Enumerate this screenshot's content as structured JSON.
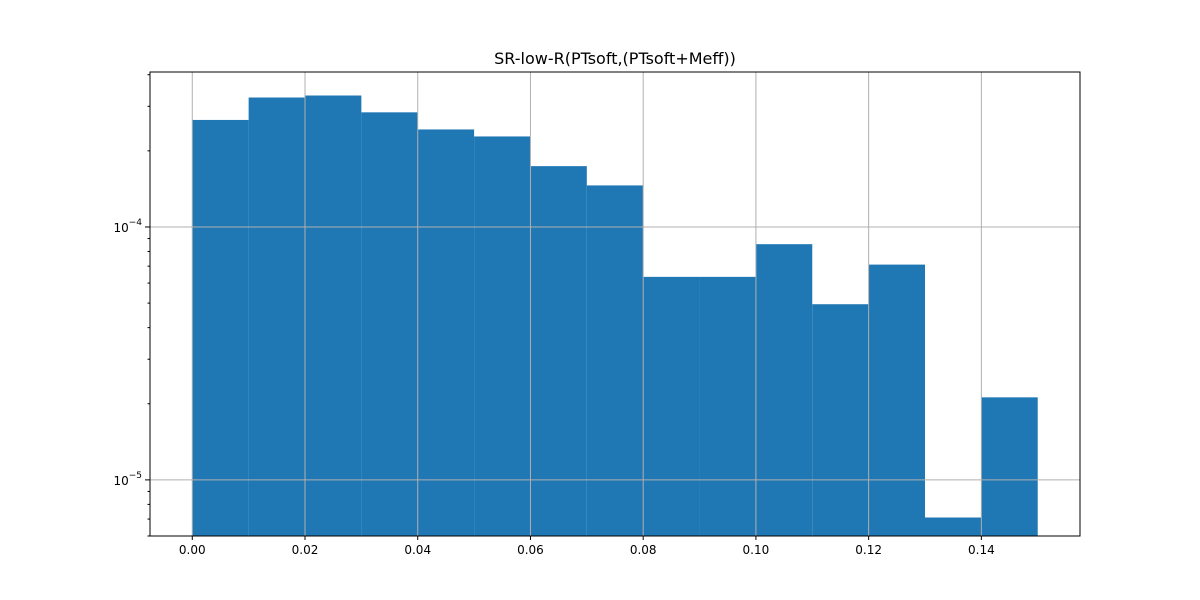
{
  "chart_data": {
    "type": "bar",
    "title": "SR-low-R(PTsoft,(PTsoft+Meff))",
    "xlabel": "",
    "ylabel": "",
    "y_scale": "log",
    "grid": true,
    "bar_color": "#1f77b4",
    "grid_color": "#b0b0b0",
    "bin_edges": [
      0.0,
      0.01,
      0.02,
      0.03,
      0.04,
      0.05,
      0.06,
      0.07,
      0.08,
      0.09,
      0.1,
      0.11,
      0.12,
      0.13,
      0.14,
      0.15
    ],
    "values": [
      0.000265,
      0.000325,
      0.000331,
      0.000284,
      0.000243,
      0.000228,
      0.000174,
      0.000146,
      6.35e-05,
      6.35e-05,
      8.55e-05,
      4.95e-05,
      7.1e-05,
      7.1e-06,
      2.12e-05
    ],
    "xlim": [
      -0.0075,
      0.1575
    ],
    "ylim": [
      6e-06,
      0.00041
    ],
    "x_ticks": [
      {
        "value": 0.0,
        "label": "0.00"
      },
      {
        "value": 0.02,
        "label": "0.02"
      },
      {
        "value": 0.04,
        "label": "0.04"
      },
      {
        "value": 0.06,
        "label": "0.06"
      },
      {
        "value": 0.08,
        "label": "0.08"
      },
      {
        "value": 0.1,
        "label": "0.10"
      },
      {
        "value": 0.12,
        "label": "0.12"
      },
      {
        "value": 0.14,
        "label": "0.14"
      }
    ],
    "y_major_ticks": [
      {
        "value": 1e-05,
        "base": "10",
        "exponent": "−5"
      },
      {
        "value": 0.0001,
        "base": "10",
        "exponent": "−4"
      }
    ]
  }
}
